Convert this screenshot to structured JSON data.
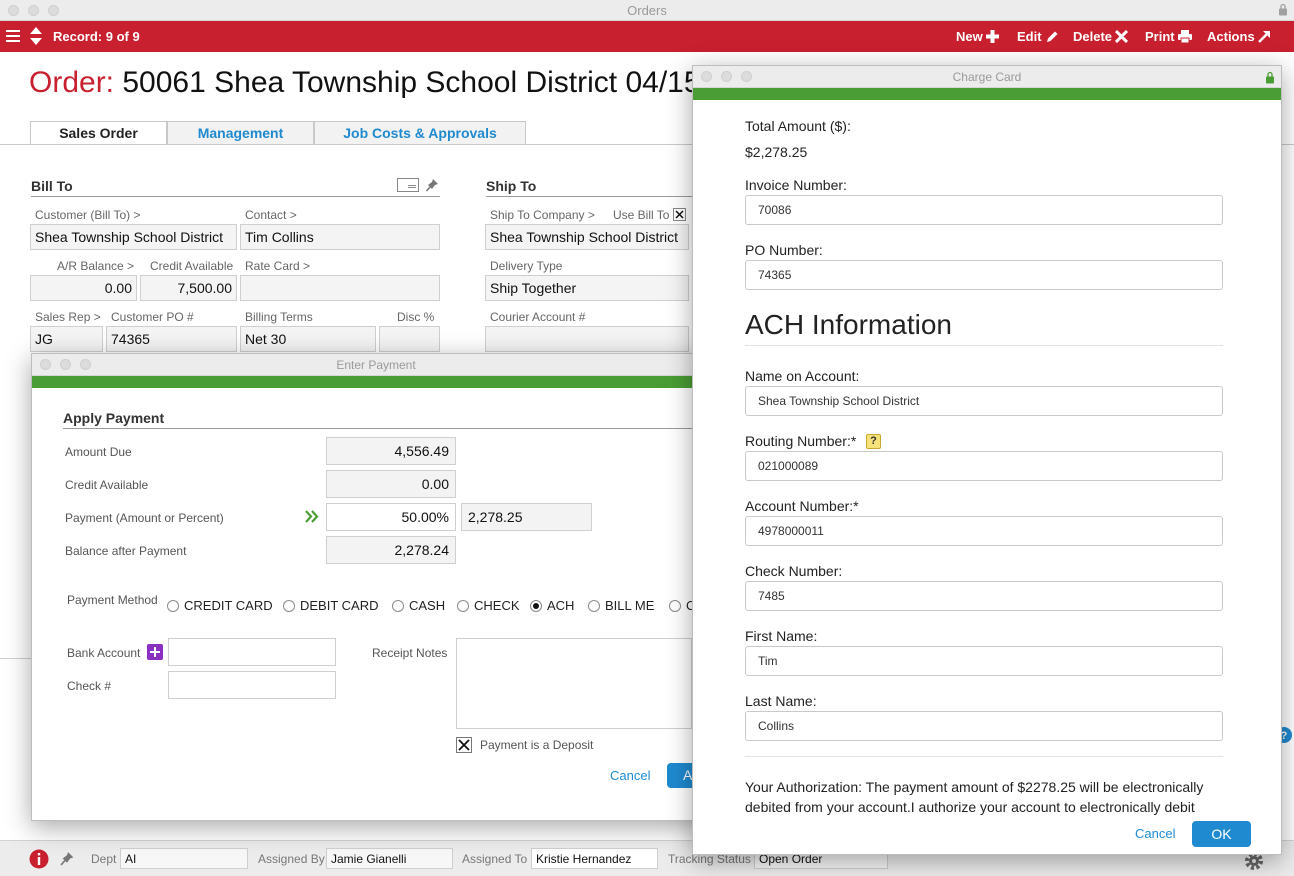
{
  "window": {
    "title": "Orders"
  },
  "toolbar": {
    "record": "Record: 9 of 9",
    "new": "New",
    "edit": "Edit",
    "delete": "Delete",
    "print": "Print",
    "actions": "Actions"
  },
  "order": {
    "label": "Order:",
    "value": "50061 Shea Township School District  04/15"
  },
  "tabs": [
    {
      "label": "Sales Order"
    },
    {
      "label": "Management"
    },
    {
      "label": "Job Costs & Approvals"
    }
  ],
  "bill_to": {
    "heading": "Bill To",
    "customer_label": "Customer (Bill To) >",
    "customer": "Shea Township School District",
    "contact_label": "Contact >",
    "contact": "Tim Collins",
    "ar_balance_label": "A/R Balance >",
    "ar_balance": "0.00",
    "credit_available_label": "Credit Available",
    "credit_available": "7,500.00",
    "rate_card_label": "Rate Card >",
    "rate_card": "",
    "sales_rep_label": "Sales Rep >",
    "sales_rep": "JG",
    "customer_po_label": "Customer PO #",
    "customer_po": "74365",
    "billing_terms_label": "Billing Terms",
    "billing_terms": "Net 30",
    "disc_label": "Disc %",
    "disc": ""
  },
  "ship_to": {
    "heading": "Ship To",
    "company_label": "Ship To Company >",
    "use_bill_to_label": "Use Bill To",
    "company": "Shea Township School District",
    "delivery_type_label": "Delivery Type",
    "delivery_type": "Ship Together",
    "courier_account_label": "Courier Account #",
    "courier_account": ""
  },
  "enter_payment": {
    "title": "Enter Payment",
    "heading": "Apply Payment",
    "amount_due_label": "Amount Due",
    "amount_due": "4,556.49",
    "credit_available_label": "Credit Available",
    "credit_available": "0.00",
    "payment_label": "Payment (Amount or Percent)",
    "payment_percent": "50.00%",
    "payment_amount": "2,278.25",
    "balance_label": "Balance after Payment",
    "balance": "2,278.24",
    "method_label": "Payment Method",
    "methods": [
      {
        "label": "CREDIT CARD",
        "selected": false
      },
      {
        "label": "DEBIT CARD",
        "selected": false
      },
      {
        "label": "CASH",
        "selected": false
      },
      {
        "label": "CHECK",
        "selected": false
      },
      {
        "label": "ACH",
        "selected": true
      },
      {
        "label": "BILL ME",
        "selected": false
      },
      {
        "label": "C",
        "selected": false
      }
    ],
    "bank_account_label": "Bank Account",
    "bank_account": "",
    "check_label": "Check #",
    "check": "",
    "receipt_notes_label": "Receipt Notes",
    "receipt_notes": "",
    "deposit_label": "Payment is a Deposit",
    "deposit_checked": true,
    "cancel": "Cancel",
    "apply_partial": "A"
  },
  "charge_card": {
    "title": "Charge Card",
    "total_label": "Total Amount ($):",
    "total": "$2,278.25",
    "invoice_label": "Invoice Number:",
    "invoice": "70086",
    "po_label": "PO Number:",
    "po": "74365",
    "ach_heading": "ACH Information",
    "name_label": "Name on Account:",
    "name": "Shea Township School District",
    "routing_label": "Routing Number:*",
    "routing_help": "?",
    "routing": "021000089",
    "account_label": "Account Number:*",
    "account": "4978000011",
    "check_label": "Check Number:",
    "check": "7485",
    "first_name_label": "First Name:",
    "first_name": "Tim",
    "last_name_label": "Last Name:",
    "last_name": "Collins",
    "authorization_line1": "Your Authorization: The payment amount of $2278.25 will be electronically",
    "authorization_line2": "debited from your account.I authorize your account to electronically debit",
    "cancel": "Cancel",
    "ok": "OK"
  },
  "statusbar": {
    "dept_label": "Dept",
    "dept": "AI",
    "assigned_by_label": "Assigned By",
    "assigned_by": "Jamie Gianelli",
    "assigned_to_label": "Assigned To",
    "assigned_to": "Kristie Hernandez",
    "tracking_label": "Tracking Status",
    "tracking": "Open Order"
  },
  "colors": {
    "brand_red": "#c8202f",
    "accent_green": "#4a9d34",
    "link_blue": "#1f8ad0",
    "purple": "#8a2fc1"
  }
}
